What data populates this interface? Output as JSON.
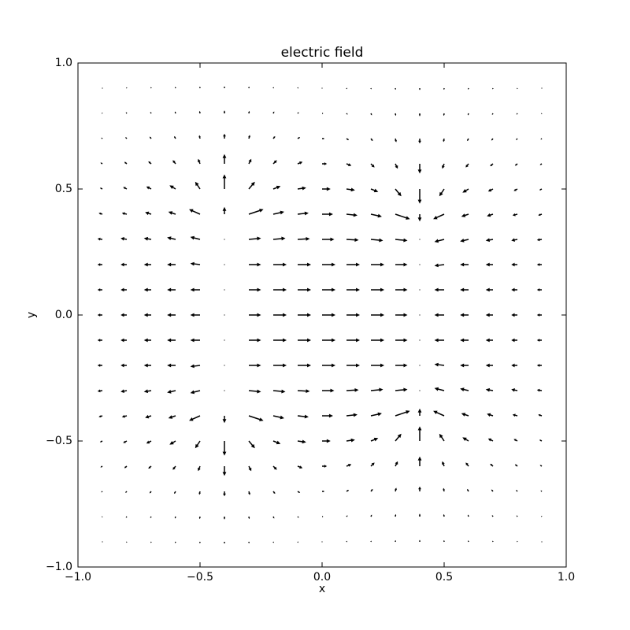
{
  "chart_data": {
    "type": "quiver",
    "title": "electric field",
    "xlabel": "x",
    "ylabel": "y",
    "xlim": [
      -1.0,
      1.0
    ],
    "ylim": [
      -1.0,
      1.0
    ],
    "xticks": [
      {
        "value": -1.0,
        "label": "−1.0"
      },
      {
        "value": -0.5,
        "label": "−0.5"
      },
      {
        "value": 0,
        "label": "0.0"
      },
      0.5,
      {
        "value": 1.0,
        "label": "1.0"
      }
    ],
    "yticks": [
      {
        "value": -1.0,
        "label": "−1.0"
      },
      {
        "value": -0.5,
        "label": "−0.5"
      },
      {
        "value": 0,
        "label": "0.0"
      },
      0.5,
      {
        "value": 1.0,
        "label": "1.0"
      }
    ],
    "color": "#000000",
    "x": [
      -0.9,
      -0.8,
      -0.7,
      -0.6,
      -0.5,
      -0.4,
      -0.3,
      -0.2,
      -0.1,
      0,
      0.1,
      0.2,
      0.3,
      0.4,
      0.5,
      0.6,
      0.7,
      0.8,
      0.9
    ],
    "y": [
      -0.9,
      -0.8,
      -0.7,
      -0.6,
      -0.5,
      -0.4,
      -0.3,
      -0.2,
      -0.1,
      0,
      0.1,
      0.2,
      0.3,
      0.4,
      0.5,
      0.6,
      0.7,
      0.8,
      0.9
    ],
    "u": [
      [
        -0.002,
        -0.002,
        -0.002,
        -0.002,
        -0.001,
        0,
        0.001,
        0.002,
        0.003,
        0.003,
        0.003,
        0.002,
        0.001,
        0,
        -0.001,
        -0.002,
        -0.002,
        -0.002,
        -0.002
      ],
      [
        -0.003,
        -0.004,
        -0.004,
        -0.003,
        -0.002,
        0,
        0.002,
        0.004,
        0.005,
        0.005,
        0.005,
        0.004,
        0.002,
        0,
        -0.002,
        -0.003,
        -0.004,
        -0.004,
        -0.003
      ],
      [
        -0.005,
        -0.006,
        -0.007,
        -0.006,
        -0.003,
        0,
        0.004,
        0.008,
        0.01,
        0.01,
        0.01,
        0.008,
        0.004,
        0,
        -0.003,
        -0.006,
        -0.007,
        -0.006,
        -0.005
      ],
      [
        -0.008,
        -0.01,
        -0.012,
        -0.012,
        -0.008,
        0,
        0.01,
        0.015,
        0.02,
        0.02,
        0.02,
        0.015,
        0.01,
        0,
        -0.008,
        -0.012,
        -0.012,
        -0.01,
        -0.008
      ],
      [
        -0.01,
        -0.015,
        -0.02,
        -0.025,
        -0.02,
        0,
        0.025,
        0.03,
        0.035,
        0.035,
        0.035,
        0.03,
        0.025,
        0,
        -0.02,
        -0.025,
        -0.02,
        -0.015,
        -0.01
      ],
      [
        -0.015,
        -0.02,
        -0.025,
        -0.03,
        -0.045,
        0,
        0.06,
        0.045,
        0.045,
        0.045,
        0.045,
        0.045,
        0.06,
        0,
        -0.045,
        -0.03,
        -0.025,
        -0.02,
        -0.015
      ],
      [
        -0.02,
        -0.025,
        -0.03,
        -0.035,
        -0.04,
        0,
        0.05,
        0.05,
        0.05,
        0.05,
        0.05,
        0.05,
        0.05,
        0,
        -0.04,
        -0.035,
        -0.03,
        -0.025,
        -0.02
      ],
      [
        -0.02,
        -0.025,
        -0.03,
        -0.035,
        -0.04,
        0,
        0.05,
        0.055,
        0.055,
        0.055,
        0.055,
        0.055,
        0.05,
        0,
        -0.04,
        -0.035,
        -0.03,
        -0.025,
        -0.02
      ],
      [
        -0.02,
        -0.025,
        -0.03,
        -0.035,
        -0.04,
        0,
        0.05,
        0.055,
        0.055,
        0.055,
        0.055,
        0.055,
        0.05,
        0,
        -0.04,
        -0.035,
        -0.03,
        -0.025,
        -0.02
      ],
      [
        -0.02,
        -0.025,
        -0.03,
        -0.035,
        -0.04,
        0,
        0.05,
        0.055,
        0.055,
        0.055,
        0.055,
        0.055,
        0.05,
        0,
        -0.04,
        -0.035,
        -0.03,
        -0.025,
        -0.02
      ],
      [
        -0.02,
        -0.025,
        -0.03,
        -0.035,
        -0.04,
        0,
        0.05,
        0.055,
        0.055,
        0.055,
        0.055,
        0.055,
        0.05,
        0,
        -0.04,
        -0.035,
        -0.03,
        -0.025,
        -0.02
      ],
      [
        -0.02,
        -0.025,
        -0.03,
        -0.035,
        -0.04,
        0,
        0.05,
        0.055,
        0.055,
        0.055,
        0.055,
        0.055,
        0.05,
        0,
        -0.04,
        -0.035,
        -0.03,
        -0.025,
        -0.02
      ],
      [
        -0.02,
        -0.025,
        -0.03,
        -0.035,
        -0.04,
        0,
        0.05,
        0.05,
        0.05,
        0.05,
        0.05,
        0.05,
        0.05,
        0,
        -0.04,
        -0.035,
        -0.03,
        -0.025,
        -0.02
      ],
      [
        -0.015,
        -0.02,
        -0.025,
        -0.03,
        -0.045,
        0,
        0.06,
        0.045,
        0.045,
        0.045,
        0.045,
        0.045,
        0.06,
        0,
        -0.045,
        -0.03,
        -0.025,
        -0.02,
        -0.015
      ],
      [
        -0.01,
        -0.015,
        -0.02,
        -0.025,
        -0.02,
        0,
        0.025,
        0.03,
        0.035,
        0.035,
        0.035,
        0.03,
        0.025,
        0,
        -0.02,
        -0.025,
        -0.02,
        -0.015,
        -0.01
      ],
      [
        -0.008,
        -0.01,
        -0.012,
        -0.012,
        -0.008,
        0,
        0.01,
        0.015,
        0.02,
        0.02,
        0.02,
        0.015,
        0.01,
        0,
        -0.008,
        -0.012,
        -0.012,
        -0.01,
        -0.008
      ],
      [
        -0.005,
        -0.006,
        -0.007,
        -0.006,
        -0.003,
        0,
        0.004,
        0.008,
        0.01,
        0.01,
        0.01,
        0.008,
        0.004,
        0,
        -0.003,
        -0.006,
        -0.007,
        -0.006,
        -0.005
      ],
      [
        -0.003,
        -0.004,
        -0.004,
        -0.003,
        -0.002,
        0,
        0.002,
        0.004,
        0.005,
        0.005,
        0.005,
        0.004,
        0.002,
        0,
        -0.002,
        -0.003,
        -0.004,
        -0.004,
        -0.003
      ],
      [
        -0.002,
        -0.002,
        -0.002,
        -0.002,
        -0.001,
        0,
        0.001,
        0.002,
        0.003,
        0.003,
        0.003,
        0.002,
        0.001,
        0,
        -0.001,
        -0.002,
        -0.002,
        -0.002,
        -0.002
      ]
    ],
    "v": [
      [
        -0.002,
        -0.004,
        -0.005,
        -0.006,
        -0.007,
        -0.008,
        -0.007,
        -0.005,
        -0.004,
        0,
        0.004,
        0.005,
        0.007,
        0.008,
        0.007,
        0.006,
        0.005,
        0.004,
        0.002
      ],
      [
        -0.003,
        -0.005,
        -0.006,
        -0.008,
        -0.01,
        -0.012,
        -0.01,
        -0.008,
        -0.005,
        0,
        0.005,
        0.008,
        0.01,
        0.012,
        0.01,
        0.008,
        0.006,
        0.005,
        0.003
      ],
      [
        -0.004,
        -0.006,
        -0.008,
        -0.01,
        -0.014,
        -0.02,
        -0.015,
        -0.01,
        -0.006,
        0,
        0.006,
        0.01,
        0.015,
        0.02,
        0.014,
        0.01,
        0.008,
        0.006,
        0.004
      ],
      [
        -0.005,
        -0.008,
        -0.01,
        -0.015,
        -0.02,
        -0.04,
        -0.02,
        -0.015,
        -0.008,
        0,
        0.008,
        0.015,
        0.02,
        0.04,
        0.02,
        0.015,
        0.01,
        0.008,
        0.005
      ],
      [
        -0.005,
        -0.008,
        -0.01,
        -0.015,
        -0.03,
        -0.06,
        -0.03,
        -0.012,
        -0.005,
        0,
        0.005,
        0.012,
        0.03,
        0.06,
        0.03,
        0.015,
        0.01,
        0.008,
        0.005
      ],
      [
        -0.005,
        -0.005,
        -0.008,
        -0.01,
        -0.02,
        -0.03,
        -0.02,
        -0.01,
        -0.005,
        0,
        0.005,
        0.01,
        0.02,
        0.03,
        0.02,
        0.01,
        0.008,
        0.005,
        0.005
      ],
      [
        -0.003,
        -0.005,
        -0.005,
        -0.008,
        -0.01,
        0,
        -0.005,
        -0.005,
        -0.003,
        0,
        0.003,
        0.005,
        0.005,
        0,
        0.01,
        0.008,
        0.005,
        0.005,
        0.003
      ],
      [
        0,
        0,
        0,
        0,
        -0.005,
        0,
        0,
        0,
        0,
        0,
        0,
        0,
        0,
        0,
        0.005,
        0,
        0,
        0,
        0
      ],
      [
        0,
        0,
        0,
        0,
        0,
        0,
        0,
        0,
        0,
        0,
        0,
        0,
        0,
        0,
        0,
        0,
        0,
        0,
        0
      ],
      [
        0,
        0,
        0,
        0,
        0,
        0,
        0,
        0,
        0,
        0,
        0,
        0,
        0,
        0,
        0,
        0,
        0,
        0,
        0
      ],
      [
        0,
        0,
        0,
        0,
        0,
        0,
        0,
        0,
        0,
        0,
        0,
        0,
        0,
        0,
        0,
        0,
        0,
        0,
        0
      ],
      [
        0,
        0,
        0,
        0,
        0.005,
        0,
        0,
        0,
        0,
        0,
        0,
        0,
        0,
        0,
        -0.005,
        0,
        0,
        0,
        0
      ],
      [
        0.003,
        0.005,
        0.005,
        0.008,
        0.01,
        0,
        0.005,
        0.005,
        0.003,
        0,
        -0.003,
        -0.005,
        -0.005,
        0,
        -0.01,
        -0.008,
        -0.005,
        -0.005,
        -0.003
      ],
      [
        0.005,
        0.005,
        0.008,
        0.01,
        0.02,
        0.03,
        0.02,
        0.01,
        0.005,
        0,
        -0.005,
        -0.01,
        -0.02,
        -0.03,
        -0.02,
        -0.01,
        -0.008,
        -0.005,
        -0.005
      ],
      [
        0.005,
        0.008,
        0.01,
        0.015,
        0.03,
        0.06,
        0.03,
        0.012,
        0.005,
        0,
        -0.005,
        -0.012,
        -0.03,
        -0.06,
        -0.03,
        -0.015,
        -0.01,
        -0.008,
        -0.005
      ],
      [
        0.005,
        0.008,
        0.01,
        0.015,
        0.02,
        0.04,
        0.02,
        0.015,
        0.008,
        0,
        -0.008,
        -0.015,
        -0.02,
        -0.04,
        -0.02,
        -0.015,
        -0.01,
        -0.008,
        -0.005
      ],
      [
        0.004,
        0.006,
        0.008,
        0.01,
        0.014,
        0.02,
        0.015,
        0.01,
        0.006,
        0,
        -0.006,
        -0.01,
        -0.015,
        -0.02,
        -0.014,
        -0.01,
        -0.008,
        -0.006,
        -0.004
      ],
      [
        0.003,
        0.005,
        0.006,
        0.008,
        0.01,
        0.012,
        0.01,
        0.008,
        0.005,
        0,
        -0.005,
        -0.008,
        -0.01,
        -0.012,
        -0.01,
        -0.008,
        -0.006,
        -0.005,
        -0.003
      ],
      [
        0.002,
        0.004,
        0.005,
        0.006,
        0.007,
        0.008,
        0.007,
        0.005,
        0.004,
        0,
        -0.004,
        -0.005,
        -0.007,
        -0.008,
        -0.007,
        -0.006,
        -0.005,
        -0.004,
        -0.002
      ]
    ]
  }
}
